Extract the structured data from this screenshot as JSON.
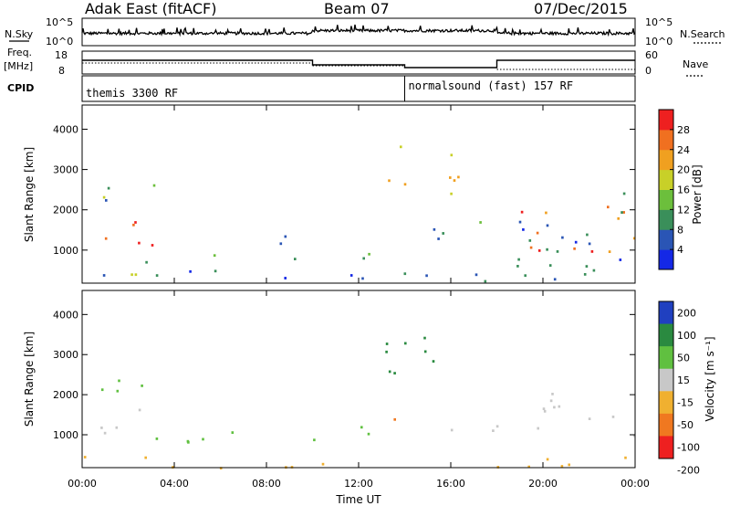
{
  "header": {
    "station": "Adak East (fitACF)",
    "beam": "Beam 07",
    "date": "07/Dec/2015"
  },
  "side_labels": {
    "nsky": "N.Sky",
    "freq": "Freq.",
    "freq_unit": "[MHz]",
    "cpid": "CPID",
    "nsearch": "N.Search",
    "nave": "Nave"
  },
  "noise_axis": {
    "left_top": "10^5",
    "left_bottom": "10^0",
    "right_top": "10^5",
    "right_bottom": "10^0"
  },
  "freq_axis": {
    "left_top": "18",
    "left_bottom": "8",
    "right_top": "60",
    "right_bottom": "0"
  },
  "cpid": [
    {
      "label": "themis 3300 RF",
      "start_hour": 0,
      "end_hour": 14
    },
    {
      "label": "normalsound (fast) 157 RF",
      "start_hour": 14,
      "end_hour": 24
    }
  ],
  "chart_data": [
    {
      "type": "heatmap",
      "name": "power",
      "xlabel": "",
      "ylabel": "Slant Range [km]",
      "xlim": [
        0,
        24
      ],
      "ylim": [
        180,
        4600
      ],
      "yticks": [
        1000,
        2000,
        3000,
        4000
      ],
      "colorbar": {
        "label": "Power [dB]",
        "ticks": [
          4,
          8,
          12,
          16,
          20,
          24,
          28
        ],
        "range": [
          0,
          32
        ]
      },
      "scatter_regions": [
        {
          "t0": 0.5,
          "t1": 3.2,
          "r0": 900,
          "r1": 1900,
          "level": 26
        },
        {
          "t0": 0.3,
          "t1": 3.5,
          "r0": 1900,
          "r1": 2700,
          "level": 12
        },
        {
          "t0": 2.0,
          "t1": 6.8,
          "r0": 400,
          "r1": 1000,
          "level": 14
        },
        {
          "t0": 8.5,
          "t1": 13.2,
          "r0": 800,
          "r1": 1400,
          "level": 9
        },
        {
          "t0": 13.5,
          "t1": 17.5,
          "r0": 1200,
          "r1": 1800,
          "level": 11
        },
        {
          "t0": 18.8,
          "t1": 24.0,
          "r0": 800,
          "r1": 2200,
          "level": 26
        },
        {
          "t0": 18.5,
          "t1": 23.5,
          "r0": 400,
          "r1": 2500,
          "level": 7
        },
        {
          "t0": 0.0,
          "t1": 24.0,
          "r0": 180,
          "r1": 500,
          "level": 6
        },
        {
          "t0": 13.0,
          "t1": 17.0,
          "r0": 2400,
          "r1": 3600,
          "level": 18
        }
      ]
    },
    {
      "type": "heatmap",
      "name": "velocity",
      "xlabel": "Time UT",
      "ylabel": "Slant Range [km]",
      "xlim": [
        0,
        24
      ],
      "ylim": [
        180,
        4600
      ],
      "yticks": [
        1000,
        2000,
        3000,
        4000
      ],
      "xticks": [
        "00:00",
        "04:00",
        "08:00",
        "12:00",
        "16:00",
        "20:00",
        "00:00"
      ],
      "colorbar": {
        "label": "Velocity [m s⁻¹]",
        "ticks": [
          200,
          100,
          50,
          15,
          -15,
          -50,
          -100,
          -200
        ]
      },
      "scatter_regions": [
        {
          "t0": 0.0,
          "t1": 3.0,
          "r0": 1000,
          "r1": 1800,
          "level": 0
        },
        {
          "t0": 0.5,
          "t1": 3.5,
          "r0": 1800,
          "r1": 2500,
          "level": 50
        },
        {
          "t0": 2.0,
          "t1": 6.5,
          "r0": 600,
          "r1": 1200,
          "level": 40
        },
        {
          "t0": 8.5,
          "t1": 13.0,
          "r0": 900,
          "r1": 1300,
          "level": 60
        },
        {
          "t0": 13.2,
          "t1": 15.0,
          "r0": 1300,
          "r1": 1700,
          "level": -60
        },
        {
          "t0": 15.0,
          "t1": 19.0,
          "r0": 1000,
          "r1": 1400,
          "level": 20
        },
        {
          "t0": 18.5,
          "t1": 24.0,
          "r0": 1000,
          "r1": 2100,
          "level": 0
        },
        {
          "t0": 0.0,
          "t1": 24.0,
          "r0": 180,
          "r1": 500,
          "level": -30
        },
        {
          "t0": 13.0,
          "t1": 17.0,
          "r0": 2400,
          "r1": 3600,
          "level": 120
        }
      ]
    }
  ],
  "colors": {
    "power_scale": [
      "#1428e6",
      "#2a55b5",
      "#3a8f5a",
      "#6cbf3c",
      "#c8d028",
      "#f0a020",
      "#f07020",
      "#ee2020"
    ],
    "velocity_scale": [
      "#2040c0",
      "#2a8a40",
      "#60c040",
      "#c8c8c8",
      "#f0b030",
      "#f07820",
      "#ee2020"
    ]
  }
}
